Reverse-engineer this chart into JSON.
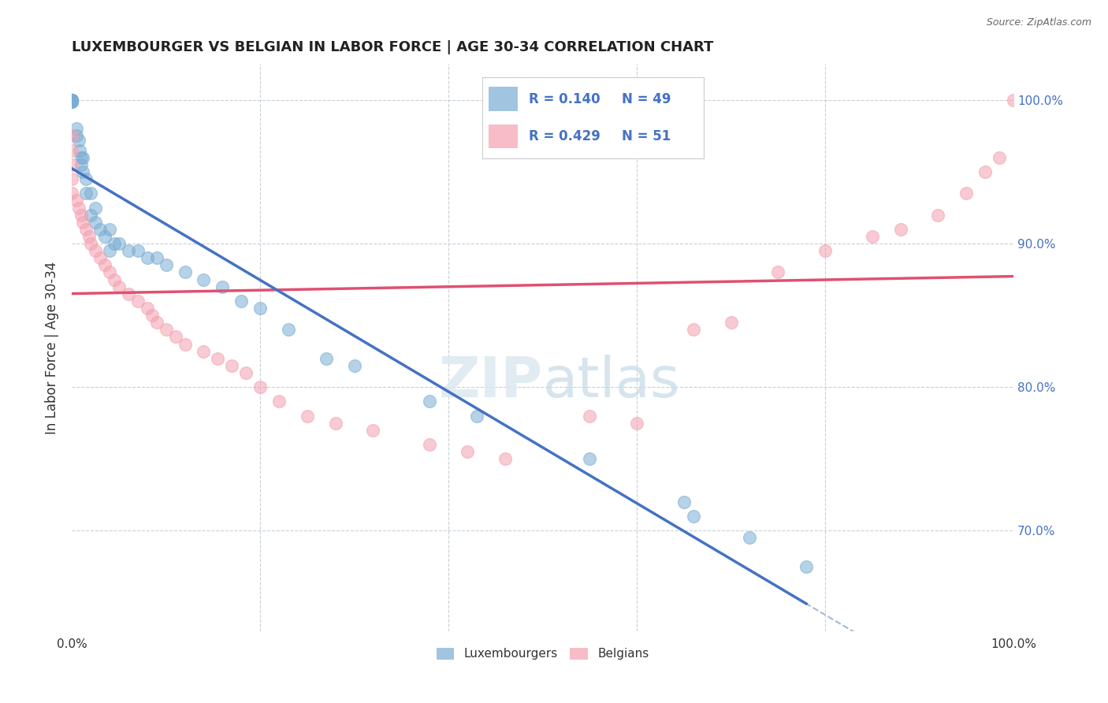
{
  "title": "LUXEMBOURGER VS BELGIAN IN LABOR FORCE | AGE 30-34 CORRELATION CHART",
  "source": "Source: ZipAtlas.com",
  "ylabel": "In Labor Force | Age 30-34",
  "xlim": [
    0.0,
    1.0
  ],
  "ylim": [
    0.63,
    1.025
  ],
  "yticks": [
    0.7,
    0.8,
    0.9,
    1.0
  ],
  "ytick_labels": [
    "70.0%",
    "80.0%",
    "90.0%",
    "100.0%"
  ],
  "legend_r_lux": "R = 0.140",
  "legend_n_lux": "N = 49",
  "legend_r_bel": "R = 0.429",
  "legend_n_bel": "N = 51",
  "lux_color": "#7aadd4",
  "bel_color": "#f4a0b0",
  "lux_line_color": "#4472c4",
  "bel_line_color": "#e05070",
  "lux_dashed_color": "#a0b8d8",
  "lux_x": [
    0.0,
    0.0,
    0.0,
    0.0,
    0.0,
    0.0,
    0.0,
    0.0,
    0.0,
    0.005,
    0.005,
    0.007,
    0.008,
    0.01,
    0.01,
    0.012,
    0.012,
    0.015,
    0.015,
    0.02,
    0.02,
    0.025,
    0.025,
    0.03,
    0.035,
    0.04,
    0.04,
    0.045,
    0.05,
    0.06,
    0.07,
    0.08,
    0.09,
    0.1,
    0.12,
    0.14,
    0.16,
    0.18,
    0.2,
    0.23,
    0.27,
    0.3,
    0.38,
    0.43,
    0.55,
    0.65,
    0.66,
    0.72,
    0.78
  ],
  "lux_y": [
    1.0,
    1.0,
    1.0,
    1.0,
    1.0,
    1.0,
    0.999,
    0.999,
    0.999,
    0.98,
    0.975,
    0.972,
    0.965,
    0.96,
    0.955,
    0.96,
    0.95,
    0.945,
    0.935,
    0.935,
    0.92,
    0.925,
    0.915,
    0.91,
    0.905,
    0.91,
    0.895,
    0.9,
    0.9,
    0.895,
    0.895,
    0.89,
    0.89,
    0.885,
    0.88,
    0.875,
    0.87,
    0.86,
    0.855,
    0.84,
    0.82,
    0.815,
    0.79,
    0.78,
    0.75,
    0.72,
    0.71,
    0.695,
    0.675
  ],
  "bel_x": [
    0.0,
    0.0,
    0.0,
    0.0,
    0.0,
    0.005,
    0.007,
    0.01,
    0.012,
    0.015,
    0.018,
    0.02,
    0.025,
    0.03,
    0.035,
    0.04,
    0.045,
    0.05,
    0.06,
    0.07,
    0.08,
    0.085,
    0.09,
    0.1,
    0.11,
    0.12,
    0.14,
    0.155,
    0.17,
    0.185,
    0.2,
    0.22,
    0.25,
    0.28,
    0.32,
    0.38,
    0.42,
    0.46,
    0.55,
    0.6,
    0.66,
    0.7,
    0.75,
    0.8,
    0.85,
    0.88,
    0.92,
    0.95,
    0.97,
    0.985,
    1.0
  ],
  "bel_y": [
    0.975,
    0.965,
    0.955,
    0.945,
    0.935,
    0.93,
    0.925,
    0.92,
    0.915,
    0.91,
    0.905,
    0.9,
    0.895,
    0.89,
    0.885,
    0.88,
    0.875,
    0.87,
    0.865,
    0.86,
    0.855,
    0.85,
    0.845,
    0.84,
    0.835,
    0.83,
    0.825,
    0.82,
    0.815,
    0.81,
    0.8,
    0.79,
    0.78,
    0.775,
    0.77,
    0.76,
    0.755,
    0.75,
    0.78,
    0.775,
    0.84,
    0.845,
    0.88,
    0.895,
    0.905,
    0.91,
    0.92,
    0.935,
    0.95,
    0.96,
    1.0
  ]
}
